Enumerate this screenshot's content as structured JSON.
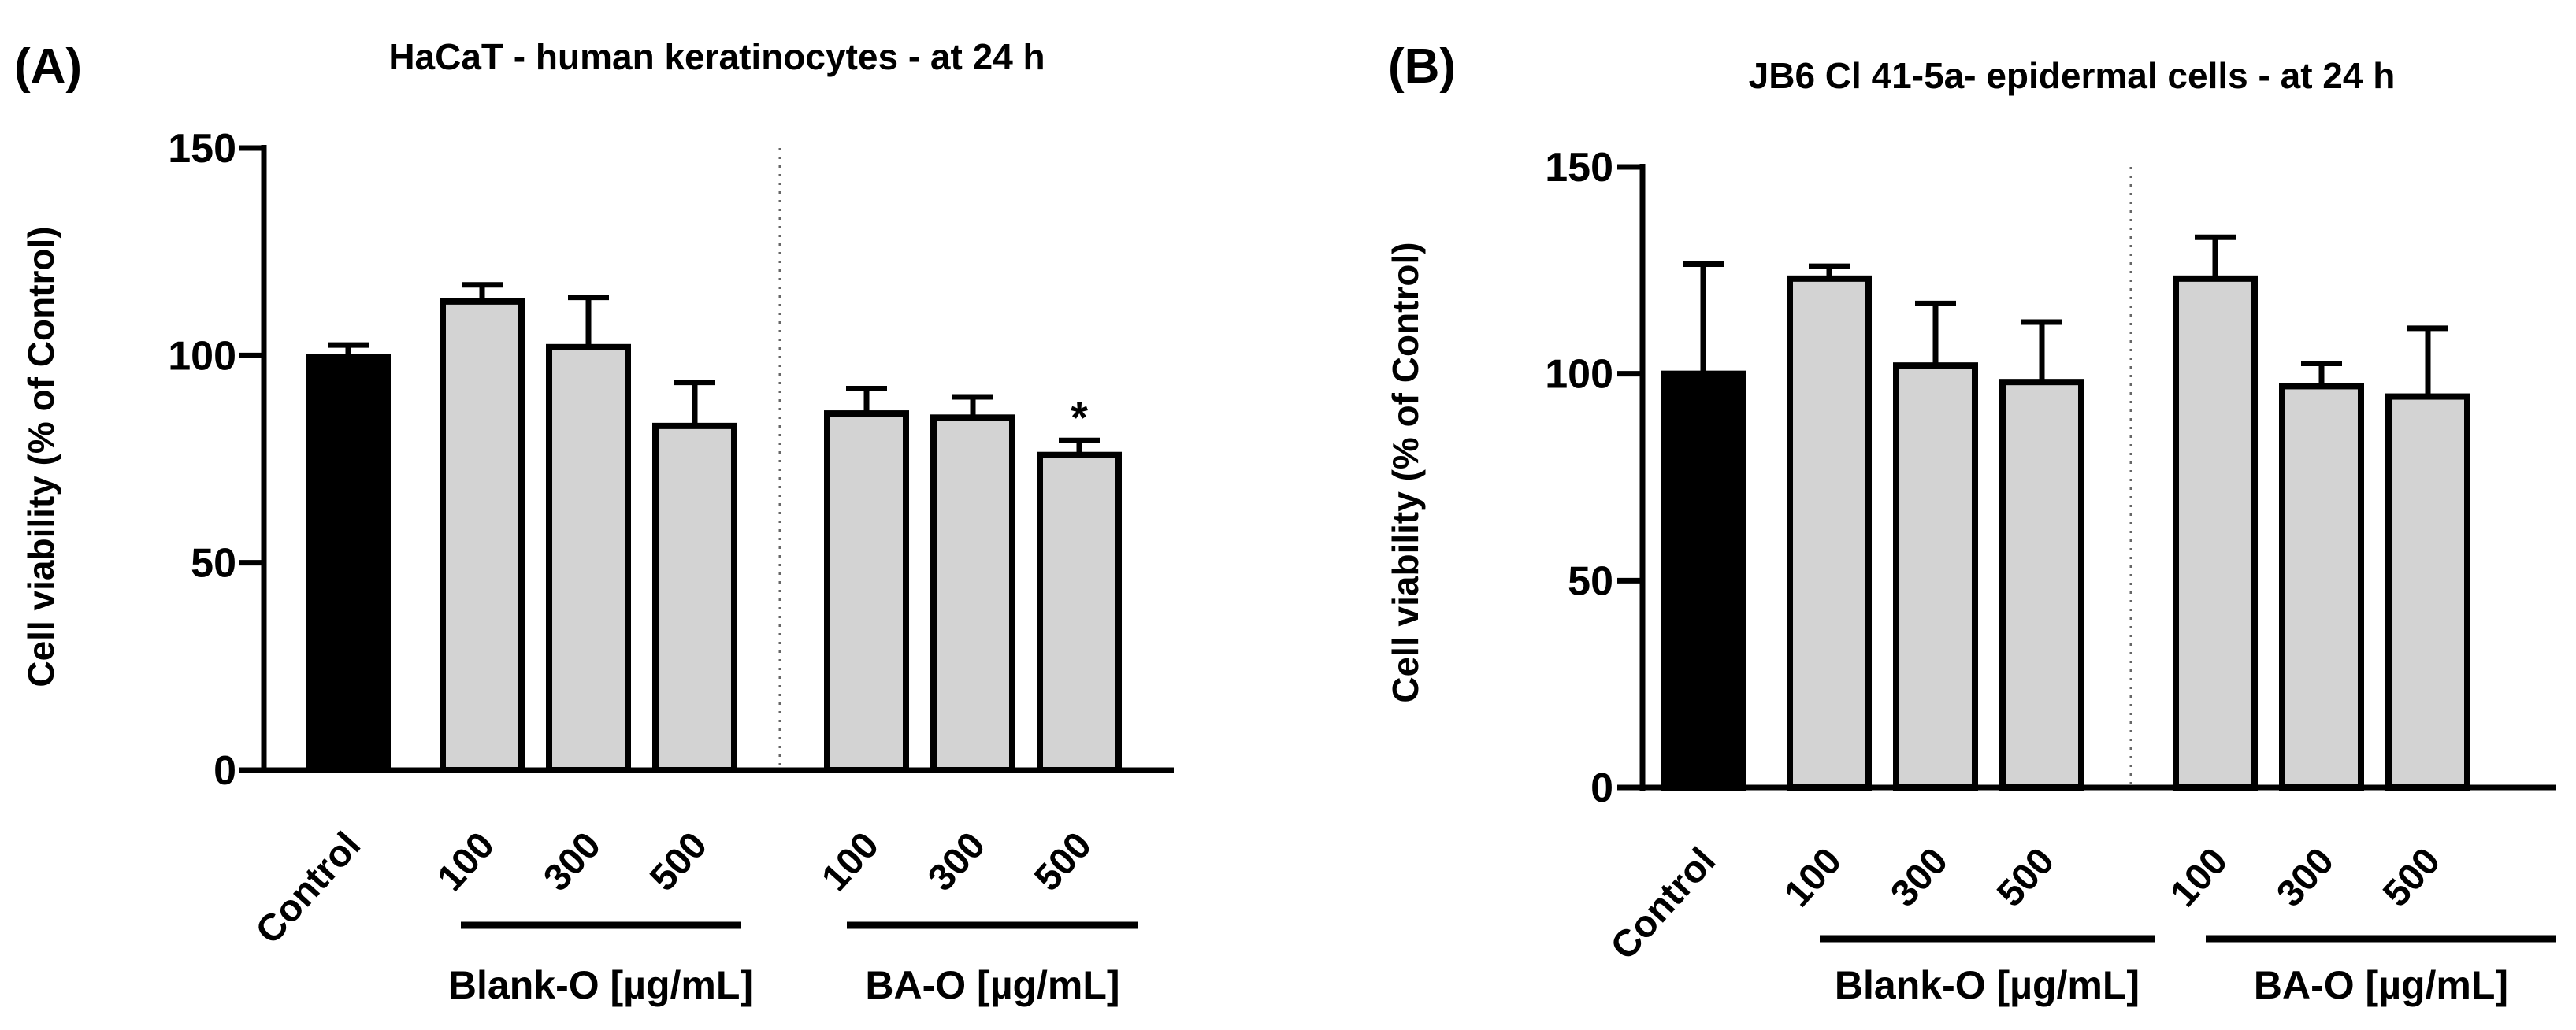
{
  "colors": {
    "control_fill": "#000000",
    "treatment_fill": "#d3d3d3",
    "stroke": "#000000",
    "divider": "#666666"
  },
  "chart_data": [
    {
      "type": "bar",
      "panel_label": "(A)",
      "title": "HaCaT - human keratinocytes - at 24 h",
      "xlabel": "",
      "ylabel": "Cell viability (% of Control)",
      "ylim": [
        0,
        150
      ],
      "yticks": [
        0,
        50,
        100,
        150
      ],
      "categories": [
        "Control",
        "100",
        "300",
        "500",
        "100",
        "300",
        "500"
      ],
      "values": [
        99.5,
        113,
        102,
        83,
        86,
        85,
        76
      ],
      "errors": [
        3,
        4,
        12,
        10.5,
        6,
        5,
        3.5
      ],
      "fill_roles": [
        "control",
        "treatment",
        "treatment",
        "treatment",
        "treatment",
        "treatment",
        "treatment"
      ],
      "annotations": [
        {
          "category_index": 6,
          "text": "*"
        }
      ],
      "groups": [
        {
          "label": "Blank-O [µg/mL]",
          "category_indices": [
            1,
            2,
            3
          ]
        },
        {
          "label": "BA-O  [µg/mL]",
          "category_indices": [
            4,
            5,
            6
          ]
        }
      ],
      "divider_after_index": 3
    },
    {
      "type": "bar",
      "panel_label": "(B)",
      "title": "JB6 Cl 41-5a- epidermal cells - at 24 h",
      "xlabel": "",
      "ylabel": "Cell viability (% of Control)",
      "ylim": [
        0,
        150
      ],
      "yticks": [
        0,
        50,
        100,
        150
      ],
      "categories": [
        "Control",
        "100",
        "300",
        "500",
        "100",
        "300",
        "500"
      ],
      "values": [
        100,
        123,
        102,
        98,
        123,
        97,
        94.5
      ],
      "errors": [
        26.5,
        3,
        15,
        14.5,
        10,
        5.5,
        16.5
      ],
      "fill_roles": [
        "control",
        "treatment",
        "treatment",
        "treatment",
        "treatment",
        "treatment",
        "treatment"
      ],
      "annotations": [],
      "groups": [
        {
          "label": "Blank-O [µg/mL]",
          "category_indices": [
            1,
            2,
            3
          ]
        },
        {
          "label": "BA-O [µg/mL]",
          "category_indices": [
            4,
            5,
            6
          ]
        }
      ],
      "divider_after_index": 3
    }
  ]
}
